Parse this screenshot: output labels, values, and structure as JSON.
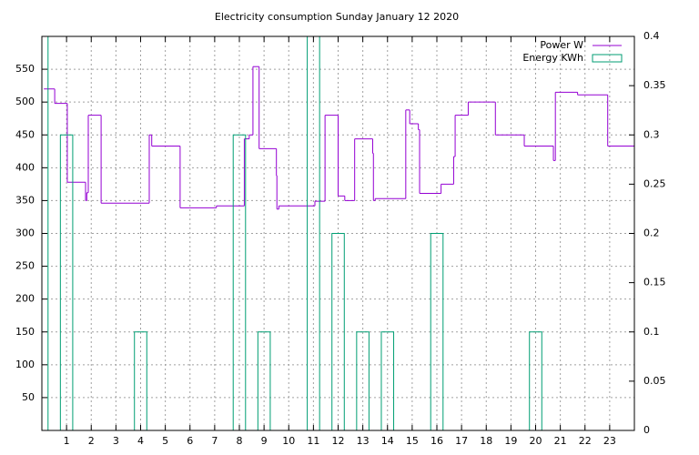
{
  "chart_data": {
    "type": "step",
    "title": "Electricity consumption Sunday January 12 2020",
    "xlim": [
      0,
      24
    ],
    "xticks": [
      1,
      2,
      3,
      4,
      5,
      6,
      7,
      8,
      9,
      10,
      11,
      12,
      13,
      14,
      15,
      16,
      17,
      18,
      19,
      20,
      21,
      22,
      23
    ],
    "ylim": [
      0,
      600
    ],
    "yticks": [
      50,
      100,
      150,
      200,
      250,
      300,
      350,
      400,
      450,
      500,
      550
    ],
    "y2lim": [
      0,
      0.4
    ],
    "y2ticks": [
      0,
      0.05,
      0.1,
      0.15,
      0.2,
      0.25,
      0.3,
      0.35,
      0.4
    ],
    "grid": true,
    "legend": "top-right",
    "series": [
      {
        "name": "Power W",
        "color": "#9400d3",
        "x": [
          0.08,
          0.52,
          1.03,
          1.77,
          1.82,
          1.88,
          2.4,
          4.35,
          4.45,
          5.6,
          7.07,
          8.2,
          8.4,
          8.55,
          8.8,
          9.5,
          9.52,
          9.6,
          11.06,
          11.47,
          12.0,
          12.27,
          12.67,
          13.4,
          13.43,
          13.5,
          14.74,
          14.9,
          15.25,
          15.3,
          16.17,
          16.68,
          16.74,
          17.27,
          18.37,
          19.54,
          20.72,
          20.8,
          21.7,
          22.92,
          24
        ],
        "values": [
          520,
          498,
          378,
          350,
          362,
          480,
          346,
          450,
          433,
          339,
          342,
          444,
          450,
          554,
          429,
          388,
          337,
          342,
          349,
          480,
          357,
          350,
          444,
          422,
          350,
          353,
          488,
          467,
          458,
          361,
          375,
          417,
          480,
          500,
          450,
          433,
          411,
          515,
          511,
          433,
          433
        ]
      },
      {
        "name": "Energy KWh",
        "color": "#009e73",
        "axis": "y2",
        "style": "boxes",
        "x": [
          0,
          1,
          4,
          8,
          9,
          11,
          12,
          13,
          14,
          16,
          20
        ],
        "values": [
          0.4,
          0.3,
          0.1,
          0.3,
          0.1,
          0.4,
          0.2,
          0.1,
          0.1,
          0.2,
          0.1
        ]
      }
    ]
  }
}
